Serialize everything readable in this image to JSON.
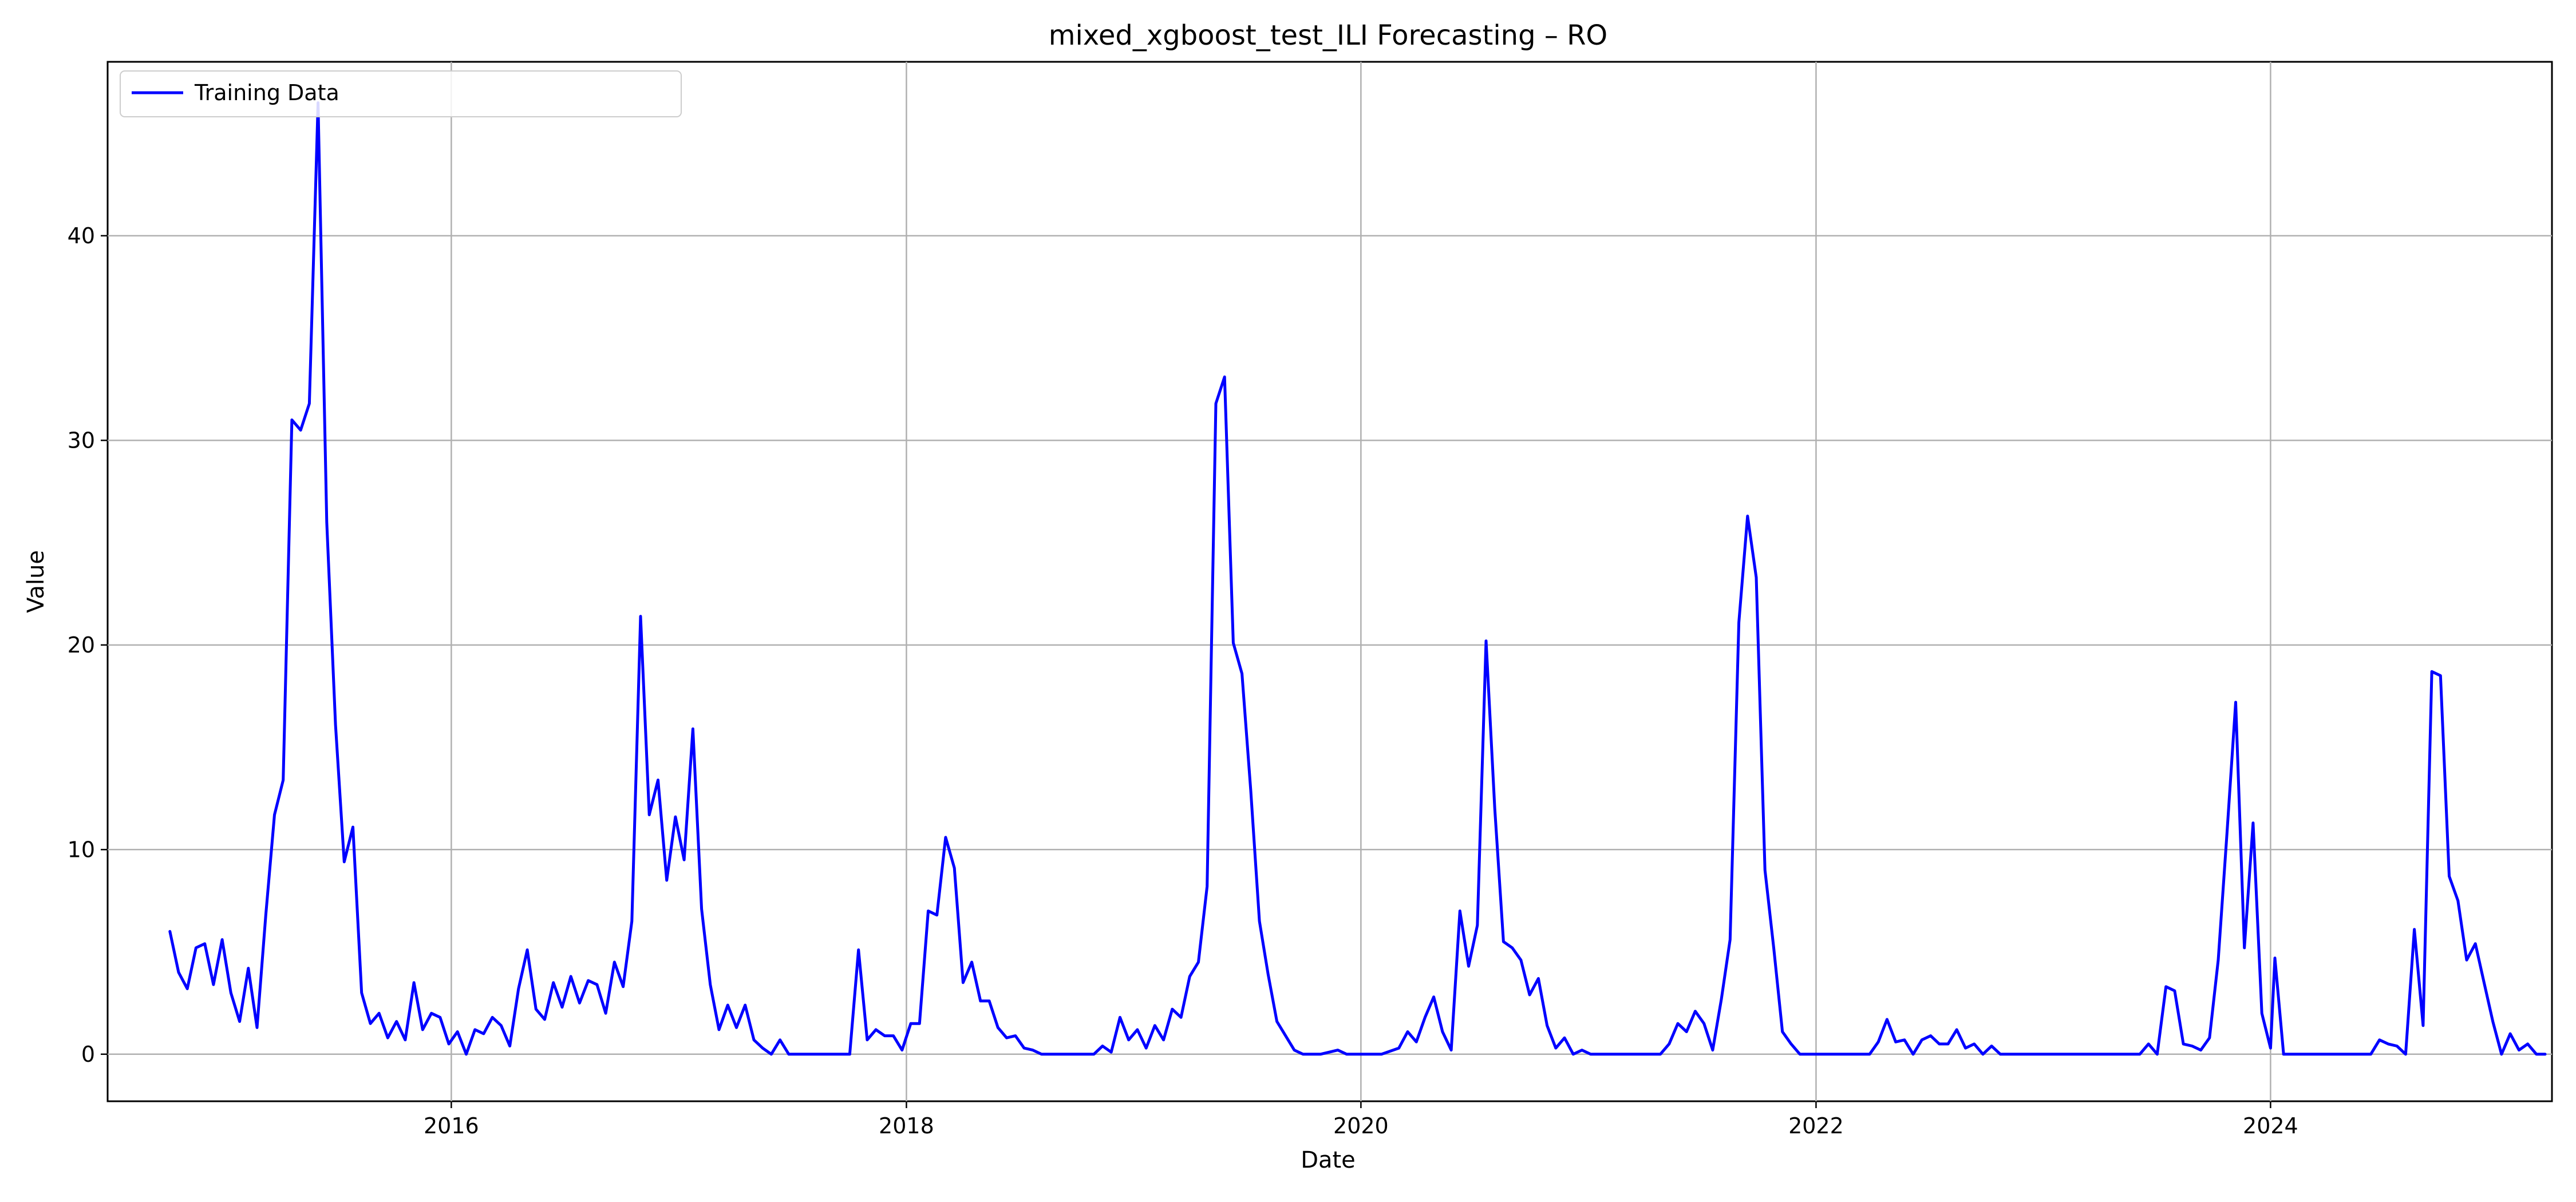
{
  "chart_data": {
    "type": "line",
    "title": "mixed_xgboost_test_ILI Forecasting – RO",
    "xlabel": "Date",
    "ylabel": "Value",
    "xlim": [
      "2014-06-28",
      "2025-03-28"
    ],
    "ylim": [
      -2.3,
      48.5
    ],
    "x_ticks": [
      "2016",
      "2018",
      "2020",
      "2022",
      "2024"
    ],
    "y_ticks": [
      0,
      10,
      20,
      30,
      40
    ],
    "grid": true,
    "legend_position": "top-left",
    "series": [
      {
        "name": "Training Data",
        "color": "#0000ff",
        "dash": "solid",
        "points": [
          [
            "2014-10-06",
            6.0
          ],
          [
            "2014-10-20",
            4.0
          ],
          [
            "2014-11-03",
            3.2
          ],
          [
            "2014-11-17",
            5.2
          ],
          [
            "2014-12-01",
            5.4
          ],
          [
            "2014-12-15",
            3.4
          ],
          [
            "2014-12-29",
            5.6
          ],
          [
            "2015-01-12",
            3.0
          ],
          [
            "2015-01-26",
            1.6
          ],
          [
            "2015-02-09",
            4.2
          ],
          [
            "2015-02-23",
            1.3
          ],
          [
            "2015-03-09",
            6.8
          ],
          [
            "2015-03-23",
            11.7
          ],
          [
            "2015-04-06",
            13.4
          ],
          [
            "2015-04-20",
            31.0
          ],
          [
            "2015-05-04",
            30.5
          ],
          [
            "2015-05-18",
            31.8
          ],
          [
            "2015-06-01",
            46.5
          ],
          [
            "2015-06-15",
            26.0
          ],
          [
            "2015-06-29",
            16.1
          ],
          [
            "2015-07-13",
            9.4
          ],
          [
            "2015-07-27",
            11.1
          ],
          [
            "2015-08-10",
            3.0
          ],
          [
            "2015-08-24",
            1.5
          ],
          [
            "2015-09-07",
            2.0
          ],
          [
            "2015-09-21",
            0.8
          ],
          [
            "2015-10-05",
            1.6
          ],
          [
            "2015-10-19",
            0.7
          ],
          [
            "2015-11-02",
            3.5
          ],
          [
            "2015-11-16",
            1.2
          ],
          [
            "2015-11-30",
            2.0
          ],
          [
            "2015-12-14",
            1.8
          ],
          [
            "2015-12-28",
            0.5
          ],
          [
            "2016-01-11",
            1.1
          ],
          [
            "2016-01-25",
            0.0
          ],
          [
            "2016-02-08",
            1.2
          ],
          [
            "2016-02-22",
            1.0
          ],
          [
            "2016-03-07",
            1.8
          ],
          [
            "2016-03-21",
            1.4
          ],
          [
            "2016-04-04",
            0.4
          ],
          [
            "2016-04-18",
            3.2
          ],
          [
            "2016-05-02",
            5.1
          ],
          [
            "2016-05-16",
            2.2
          ],
          [
            "2016-05-30",
            1.7
          ],
          [
            "2016-06-13",
            3.5
          ],
          [
            "2016-06-27",
            2.3
          ],
          [
            "2016-07-11",
            3.8
          ],
          [
            "2016-07-25",
            2.5
          ],
          [
            "2016-08-08",
            3.6
          ],
          [
            "2016-08-22",
            3.4
          ],
          [
            "2016-09-05",
            2.0
          ],
          [
            "2016-09-19",
            4.5
          ],
          [
            "2016-10-03",
            3.3
          ],
          [
            "2016-10-17",
            6.5
          ],
          [
            "2016-10-31",
            21.4
          ],
          [
            "2016-11-14",
            11.7
          ],
          [
            "2016-11-28",
            13.4
          ],
          [
            "2016-12-12",
            8.5
          ],
          [
            "2016-12-26",
            11.6
          ],
          [
            "2017-01-09",
            9.5
          ],
          [
            "2017-01-23",
            15.9
          ],
          [
            "2017-02-06",
            7.1
          ],
          [
            "2017-02-20",
            3.4
          ],
          [
            "2017-03-06",
            1.2
          ],
          [
            "2017-03-20",
            2.4
          ],
          [
            "2017-04-03",
            1.3
          ],
          [
            "2017-04-17",
            2.4
          ],
          [
            "2017-05-01",
            0.7
          ],
          [
            "2017-05-15",
            0.3
          ],
          [
            "2017-05-29",
            0.0
          ],
          [
            "2017-06-12",
            0.7
          ],
          [
            "2017-06-26",
            0.0
          ],
          [
            "2017-07-10",
            0.0
          ],
          [
            "2017-08-07",
            0.0
          ],
          [
            "2017-09-04",
            0.0
          ],
          [
            "2017-10-02",
            0.0
          ],
          [
            "2017-10-16",
            5.1
          ],
          [
            "2017-10-30",
            0.7
          ],
          [
            "2017-11-13",
            1.2
          ],
          [
            "2017-11-27",
            0.9
          ],
          [
            "2017-12-11",
            0.9
          ],
          [
            "2017-12-25",
            0.2
          ],
          [
            "2018-01-08",
            1.5
          ],
          [
            "2018-01-22",
            1.5
          ],
          [
            "2018-02-05",
            7.0
          ],
          [
            "2018-02-19",
            6.8
          ],
          [
            "2018-03-05",
            10.6
          ],
          [
            "2018-03-19",
            9.1
          ],
          [
            "2018-04-02",
            3.5
          ],
          [
            "2018-04-16",
            4.5
          ],
          [
            "2018-04-30",
            2.6
          ],
          [
            "2018-05-14",
            2.6
          ],
          [
            "2018-05-28",
            1.3
          ],
          [
            "2018-06-11",
            0.8
          ],
          [
            "2018-06-25",
            0.9
          ],
          [
            "2018-07-09",
            0.3
          ],
          [
            "2018-07-23",
            0.2
          ],
          [
            "2018-08-06",
            0.0
          ],
          [
            "2018-09-03",
            0.0
          ],
          [
            "2018-10-01",
            0.0
          ],
          [
            "2018-10-29",
            0.0
          ],
          [
            "2018-11-12",
            0.4
          ],
          [
            "2018-11-26",
            0.1
          ],
          [
            "2018-12-10",
            1.8
          ],
          [
            "2018-12-24",
            0.7
          ],
          [
            "2019-01-07",
            1.2
          ],
          [
            "2019-01-21",
            0.3
          ],
          [
            "2019-02-04",
            1.4
          ],
          [
            "2019-02-18",
            0.7
          ],
          [
            "2019-03-04",
            2.2
          ],
          [
            "2019-03-18",
            1.8
          ],
          [
            "2019-04-01",
            3.8
          ],
          [
            "2019-04-15",
            4.5
          ],
          [
            "2019-04-29",
            8.2
          ],
          [
            "2019-05-13",
            31.8
          ],
          [
            "2019-05-27",
            33.1
          ],
          [
            "2019-06-10",
            20.1
          ],
          [
            "2019-06-24",
            18.6
          ],
          [
            "2019-07-08",
            12.9
          ],
          [
            "2019-07-22",
            6.5
          ],
          [
            "2019-08-05",
            3.9
          ],
          [
            "2019-08-19",
            1.6
          ],
          [
            "2019-09-02",
            0.9
          ],
          [
            "2019-09-16",
            0.2
          ],
          [
            "2019-09-30",
            0.0
          ],
          [
            "2019-10-28",
            0.0
          ],
          [
            "2019-11-25",
            0.2
          ],
          [
            "2019-12-09",
            0.0
          ],
          [
            "2020-01-06",
            0.0
          ],
          [
            "2020-02-03",
            0.0
          ],
          [
            "2020-03-02",
            0.3
          ],
          [
            "2020-03-16",
            1.1
          ],
          [
            "2020-03-30",
            0.6
          ],
          [
            "2020-04-13",
            1.8
          ],
          [
            "2020-04-27",
            2.8
          ],
          [
            "2020-05-11",
            1.1
          ],
          [
            "2020-05-25",
            0.2
          ],
          [
            "2020-06-08",
            7.0
          ],
          [
            "2020-06-22",
            4.3
          ],
          [
            "2020-07-06",
            6.3
          ],
          [
            "2020-07-20",
            20.2
          ],
          [
            "2020-08-03",
            12.0
          ],
          [
            "2020-08-17",
            5.5
          ],
          [
            "2020-08-31",
            5.2
          ],
          [
            "2020-09-14",
            4.6
          ],
          [
            "2020-09-28",
            2.9
          ],
          [
            "2020-10-12",
            3.7
          ],
          [
            "2020-10-26",
            1.4
          ],
          [
            "2020-11-09",
            0.3
          ],
          [
            "2020-11-23",
            0.8
          ],
          [
            "2020-12-07",
            0.0
          ],
          [
            "2020-12-21",
            0.2
          ],
          [
            "2021-01-04",
            0.0
          ],
          [
            "2021-02-01",
            0.0
          ],
          [
            "2021-03-01",
            0.0
          ],
          [
            "2021-03-29",
            0.0
          ],
          [
            "2021-04-26",
            0.0
          ],
          [
            "2021-05-10",
            0.5
          ],
          [
            "2021-05-24",
            1.5
          ],
          [
            "2021-06-07",
            1.1
          ],
          [
            "2021-06-21",
            2.1
          ],
          [
            "2021-07-05",
            1.5
          ],
          [
            "2021-07-19",
            0.2
          ],
          [
            "2021-08-02",
            2.7
          ],
          [
            "2021-08-16",
            5.6
          ],
          [
            "2021-08-30",
            21.1
          ],
          [
            "2021-09-13",
            26.3
          ],
          [
            "2021-09-27",
            23.3
          ],
          [
            "2021-10-11",
            9.0
          ],
          [
            "2021-10-25",
            5.2
          ],
          [
            "2021-11-08",
            1.1
          ],
          [
            "2021-11-22",
            0.5
          ],
          [
            "2021-12-06",
            0.0
          ],
          [
            "2022-01-03",
            0.0
          ],
          [
            "2022-01-31",
            0.0
          ],
          [
            "2022-02-28",
            0.0
          ],
          [
            "2022-03-28",
            0.0
          ],
          [
            "2022-04-11",
            0.6
          ],
          [
            "2022-04-25",
            1.7
          ],
          [
            "2022-05-09",
            0.6
          ],
          [
            "2022-05-23",
            0.7
          ],
          [
            "2022-06-06",
            0.0
          ],
          [
            "2022-06-20",
            0.7
          ],
          [
            "2022-07-04",
            0.9
          ],
          [
            "2022-07-18",
            0.5
          ],
          [
            "2022-08-01",
            0.5
          ],
          [
            "2022-08-15",
            1.2
          ],
          [
            "2022-08-29",
            0.3
          ],
          [
            "2022-09-12",
            0.5
          ],
          [
            "2022-09-26",
            0.0
          ],
          [
            "2022-10-10",
            0.4
          ],
          [
            "2022-10-24",
            0.0
          ],
          [
            "2022-11-21",
            0.0
          ],
          [
            "2022-12-19",
            0.0
          ],
          [
            "2023-01-16",
            0.0
          ],
          [
            "2023-02-13",
            0.0
          ],
          [
            "2023-03-13",
            0.0
          ],
          [
            "2023-04-10",
            0.0
          ],
          [
            "2023-05-08",
            0.0
          ],
          [
            "2023-06-05",
            0.0
          ],
          [
            "2023-06-19",
            0.5
          ],
          [
            "2023-07-03",
            0.0
          ],
          [
            "2023-07-17",
            3.3
          ],
          [
            "2023-07-31",
            3.1
          ],
          [
            "2023-08-14",
            0.5
          ],
          [
            "2023-08-28",
            0.4
          ],
          [
            "2023-09-11",
            0.2
          ],
          [
            "2023-09-25",
            0.8
          ],
          [
            "2023-10-09",
            4.6
          ],
          [
            "2023-10-23",
            10.8
          ],
          [
            "2023-11-06",
            17.2
          ],
          [
            "2023-11-20",
            5.2
          ],
          [
            "2023-12-04",
            11.3
          ],
          [
            "2023-12-18",
            2.0
          ],
          [
            "2024-01-01",
            0.3
          ],
          [
            "2024-01-08",
            4.7
          ],
          [
            "2024-01-22",
            0.0
          ],
          [
            "2024-02-19",
            0.0
          ],
          [
            "2024-03-18",
            0.0
          ],
          [
            "2024-04-15",
            0.0
          ],
          [
            "2024-05-13",
            0.0
          ],
          [
            "2024-06-10",
            0.0
          ],
          [
            "2024-06-24",
            0.7
          ],
          [
            "2024-07-08",
            0.5
          ],
          [
            "2024-07-22",
            0.4
          ],
          [
            "2024-08-05",
            0.0
          ],
          [
            "2024-08-19",
            6.1
          ],
          [
            "2024-09-02",
            1.4
          ],
          [
            "2024-09-16",
            18.7
          ],
          [
            "2024-09-30",
            18.5
          ],
          [
            "2024-10-14",
            8.7
          ],
          [
            "2024-10-28",
            7.5
          ],
          [
            "2024-11-11",
            4.6
          ],
          [
            "2024-11-25",
            5.4
          ],
          [
            "2024-12-09",
            3.5
          ],
          [
            "2024-12-23",
            1.6
          ],
          [
            "2025-01-06",
            0.0
          ],
          [
            "2025-01-20",
            1.0
          ],
          [
            "2025-02-03",
            0.2
          ],
          [
            "2025-02-17",
            0.5
          ],
          [
            "2025-03-03",
            0.0
          ],
          [
            "2025-03-17",
            0.0
          ]
        ]
      }
    ]
  }
}
